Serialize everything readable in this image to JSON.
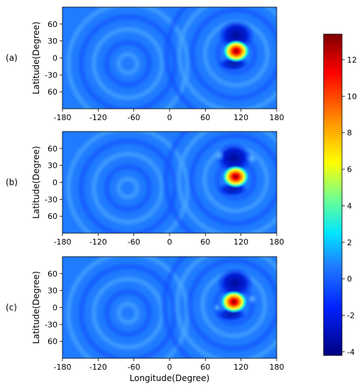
{
  "chart_data": {
    "type": "heatmap",
    "panels": [
      {
        "label": "(a)",
        "ylabel": "Latitude(Degree)",
        "xticks": [
          "-180",
          "-120",
          "-60",
          "0",
          "60",
          "120",
          "180"
        ],
        "yticks": [
          "60",
          "30",
          "0",
          "-30",
          "60"
        ],
        "xlim": [
          -180,
          180
        ],
        "ylim": [
          -90,
          90
        ],
        "peaks": [
          {
            "lon": 112,
            "lat": 12,
            "value": 13
          },
          {
            "lon": 112,
            "lat": 35,
            "value": -3.5
          }
        ]
      },
      {
        "label": "(b)",
        "ylabel": "Latitude(Degree)",
        "xticks": [
          "-180",
          "-120",
          "-60",
          "0",
          "60",
          "120",
          "180"
        ],
        "yticks": [
          "60",
          "30",
          "0",
          "-30",
          "60"
        ],
        "xlim": [
          -180,
          180
        ],
        "ylim": [
          -90,
          90
        ],
        "peaks": [
          {
            "lon": 111,
            "lat": 10,
            "value": 13
          },
          {
            "lon": 108,
            "lat": 38,
            "value": -3
          }
        ]
      },
      {
        "label": "(c)",
        "ylabel": "Latitude(Degree)",
        "xlabel": "Longitude(Degree)",
        "xticks": [
          "-180",
          "-120",
          "-60",
          "0",
          "60",
          "120",
          "180"
        ],
        "yticks": [
          "60",
          "30",
          "0",
          "-30",
          "60"
        ],
        "xlim": [
          -180,
          180
        ],
        "ylim": [
          -90,
          90
        ],
        "peaks": [
          {
            "lon": 108,
            "lat": 10,
            "value": 13
          },
          {
            "lon": 110,
            "lat": 38,
            "value": -3.5
          }
        ]
      }
    ],
    "colorbar": {
      "colormap": "jet",
      "range": [
        -4.2,
        13.4
      ],
      "ticks": [
        "12",
        "10",
        "8",
        "6",
        "4",
        "2",
        "0",
        "-2",
        "-4"
      ],
      "tick_values": [
        12,
        10,
        8,
        6,
        4,
        2,
        0,
        -2,
        -4
      ]
    }
  }
}
